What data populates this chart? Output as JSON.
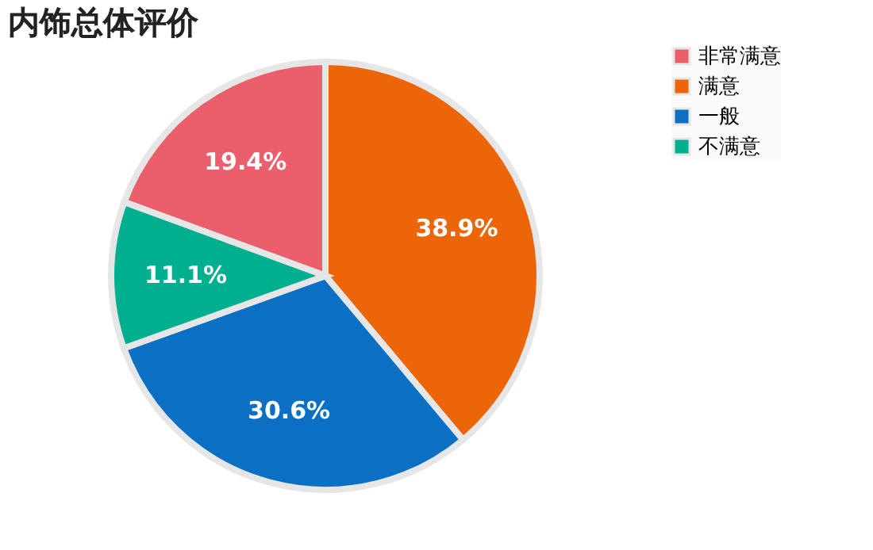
{
  "chart_data": {
    "type": "pie",
    "title": "内饰总体评价",
    "categories": [
      "非常满意",
      "满意",
      "一般",
      "不满意"
    ],
    "values": [
      19.4,
      38.9,
      30.6,
      11.1
    ],
    "colors": [
      "#ea5f6b",
      "#ec6609",
      "#0b6fc4",
      "#00af8f"
    ],
    "value_labels": [
      "19.4%",
      "38.9%",
      "30.6%",
      "11.1%"
    ],
    "legend": "right"
  }
}
